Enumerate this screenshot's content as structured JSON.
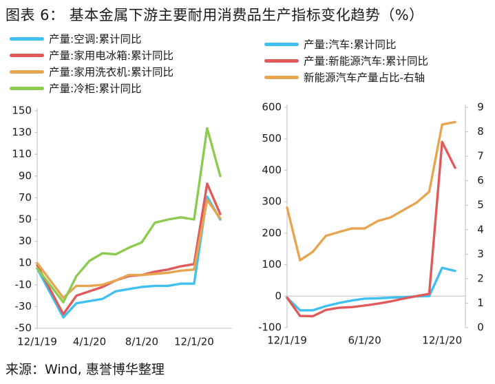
{
  "figure": {
    "title": "图表 6： 基本金属下游主要耐用消费品生产指标变化趋势（%）",
    "source": "来源：Wind, 惠誉博华整理"
  },
  "chart_data": [
    {
      "type": "line",
      "title": "",
      "ylim": [
        -50,
        150
      ],
      "yticks": [
        150,
        130,
        110,
        90,
        70,
        50,
        30,
        10,
        -10,
        -30,
        -50
      ],
      "xticks": [
        "12/1/19",
        "4/1/20",
        "8/1/20",
        "12/1/20"
      ],
      "legend_position": "top-left",
      "grid": false,
      "series": [
        {
          "name": "产量:空调:累计同比",
          "color": "#3fc0f0",
          "points": [
            [
              0,
              5
            ],
            [
              2,
              -40
            ],
            [
              3,
              -27
            ],
            [
              4,
              -25
            ],
            [
              5,
              -23
            ],
            [
              6,
              -16
            ],
            [
              7,
              -14
            ],
            [
              8,
              -12
            ],
            [
              9,
              -11
            ],
            [
              10,
              -11
            ],
            [
              11,
              -9
            ],
            [
              12,
              -9
            ],
            [
              13,
              71
            ],
            [
              14,
              50
            ]
          ]
        },
        {
          "name": "产量:家用电冰箱:累计同比",
          "color": "#e05a5a",
          "points": [
            [
              0,
              8
            ],
            [
              2,
              -37
            ],
            [
              3,
              -20
            ],
            [
              4,
              -16
            ],
            [
              5,
              -12
            ],
            [
              6,
              -6
            ],
            [
              7,
              -2
            ],
            [
              8,
              -1
            ],
            [
              9,
              2
            ],
            [
              10,
              4
            ],
            [
              11,
              7
            ],
            [
              12,
              9
            ],
            [
              13,
              83
            ],
            [
              14,
              55
            ]
          ]
        },
        {
          "name": "产量:家用洗衣机:累计同比",
          "color": "#e8a550",
          "points": [
            [
              0,
              10
            ],
            [
              2,
              -22
            ],
            [
              3,
              -11
            ],
            [
              4,
              -11
            ],
            [
              5,
              -10
            ],
            [
              6,
              -6
            ],
            [
              7,
              -1
            ],
            [
              8,
              -1
            ],
            [
              9,
              0
            ],
            [
              10,
              1
            ],
            [
              11,
              3
            ],
            [
              12,
              4
            ],
            [
              13,
              68
            ],
            [
              14,
              51
            ]
          ]
        },
        {
          "name": "产量:冷柜:累计同比",
          "color": "#8ccb50",
          "points": [
            [
              0,
              5
            ],
            [
              2,
              -26
            ],
            [
              3,
              -2
            ],
            [
              4,
              12
            ],
            [
              5,
              19
            ],
            [
              6,
              18
            ],
            [
              7,
              24
            ],
            [
              8,
              29
            ],
            [
              9,
              47
            ],
            [
              10,
              50
            ],
            [
              11,
              52
            ],
            [
              12,
              50
            ],
            [
              13,
              134
            ],
            [
              14,
              90
            ]
          ]
        }
      ]
    },
    {
      "type": "line",
      "title": "",
      "ylim": [
        -100,
        600
      ],
      "yticks": [
        600,
        500,
        400,
        300,
        200,
        100,
        0,
        -100
      ],
      "y2lim": [
        0,
        9
      ],
      "y2ticks": [
        9,
        8,
        7,
        6,
        5,
        4,
        3,
        2,
        1,
        0
      ],
      "xticks": [
        "12/1/19",
        "6/1/20",
        "12/1/20"
      ],
      "legend_position": "top-right",
      "grid": false,
      "series": [
        {
          "name": "产量:汽车:累计同比",
          "color": "#3fc0f0",
          "axis": "left",
          "points": [
            [
              0,
              -5
            ],
            [
              1,
              -45
            ],
            [
              2,
              -45
            ],
            [
              3,
              -32
            ],
            [
              4,
              -22
            ],
            [
              5,
              -14
            ],
            [
              6,
              -8
            ],
            [
              7,
              -7
            ],
            [
              8,
              -5
            ],
            [
              9,
              -3
            ],
            [
              10,
              -1
            ],
            [
              11,
              0
            ],
            [
              12,
              90
            ],
            [
              13,
              80
            ]
          ]
        },
        {
          "name": "产量:新能源汽车:累计同比",
          "color": "#e05a5a",
          "axis": "left",
          "points": [
            [
              0,
              -5
            ],
            [
              1,
              -63
            ],
            [
              2,
              -64
            ],
            [
              3,
              -44
            ],
            [
              4,
              -37
            ],
            [
              5,
              -35
            ],
            [
              6,
              -30
            ],
            [
              7,
              -24
            ],
            [
              8,
              -17
            ],
            [
              9,
              -8
            ],
            [
              10,
              0
            ],
            [
              11,
              7
            ],
            [
              12,
              490
            ],
            [
              13,
              408
            ]
          ]
        }
      ]
    },
    {
      "type": "line",
      "title": "",
      "axis": "right",
      "ylim": [
        0,
        9
      ],
      "series": [
        {
          "name": "新能源汽车产量占比-右轴",
          "color": "#e8a550",
          "points": [
            [
              0,
              4.9
            ],
            [
              1,
              2.75
            ],
            [
              2,
              3.1
            ],
            [
              3,
              3.75
            ],
            [
              4,
              3.9
            ],
            [
              5,
              4.05
            ],
            [
              6,
              4.05
            ],
            [
              7,
              4.35
            ],
            [
              8,
              4.5
            ],
            [
              9,
              4.8
            ],
            [
              10,
              5.1
            ],
            [
              11,
              5.55
            ],
            [
              12,
              8.3
            ],
            [
              13,
              8.4
            ]
          ]
        }
      ]
    }
  ]
}
